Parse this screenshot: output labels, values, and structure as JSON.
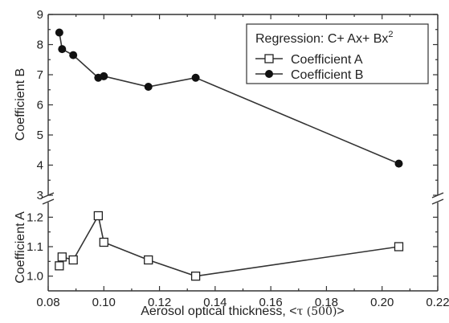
{
  "chart_data": {
    "type": "scatter",
    "x_label_prefix": "Aerosol optical thickness, <",
    "x_label_tau": "τ (500)",
    "x_label_suffix": ">",
    "xlim": [
      0.08,
      0.22
    ],
    "x_ticks": [
      "0.08",
      "0.10",
      "0.12",
      "0.14",
      "0.16",
      "0.18",
      "0.20",
      "0.22"
    ],
    "panels": {
      "top": {
        "ylabel": "Coefficient  B",
        "ylim": [
          3,
          9
        ],
        "y_ticks": [
          "3",
          "4",
          "5",
          "6",
          "7",
          "8",
          "9"
        ]
      },
      "bottom": {
        "ylabel": "Coefficient  A",
        "ylim": [
          0.95,
          1.25
        ],
        "y_ticks": [
          "1.0",
          "1.1",
          "1.2"
        ]
      }
    },
    "series": [
      {
        "name": "Coefficient  A",
        "panel": "bottom",
        "marker": "open-square",
        "x": [
          0.084,
          0.085,
          0.089,
          0.098,
          0.1,
          0.116,
          0.133,
          0.206
        ],
        "y": [
          1.035,
          1.065,
          1.055,
          1.205,
          1.115,
          1.055,
          1.0,
          1.1
        ]
      },
      {
        "name": "Coefficient  B",
        "panel": "top",
        "marker": "filled-circle",
        "x": [
          0.084,
          0.085,
          0.089,
          0.098,
          0.1,
          0.116,
          0.133,
          0.206
        ],
        "y": [
          8.4,
          7.85,
          7.65,
          6.9,
          6.95,
          6.6,
          6.9,
          4.05
        ]
      }
    ],
    "legend": {
      "title_prefix": "Regression: C+ Ax+ Bx",
      "title_sup": "2",
      "position": "top-right"
    },
    "colors": {
      "ink": "#222222",
      "marker_fill": "#ffffff",
      "marker_solid": "#111111"
    }
  }
}
